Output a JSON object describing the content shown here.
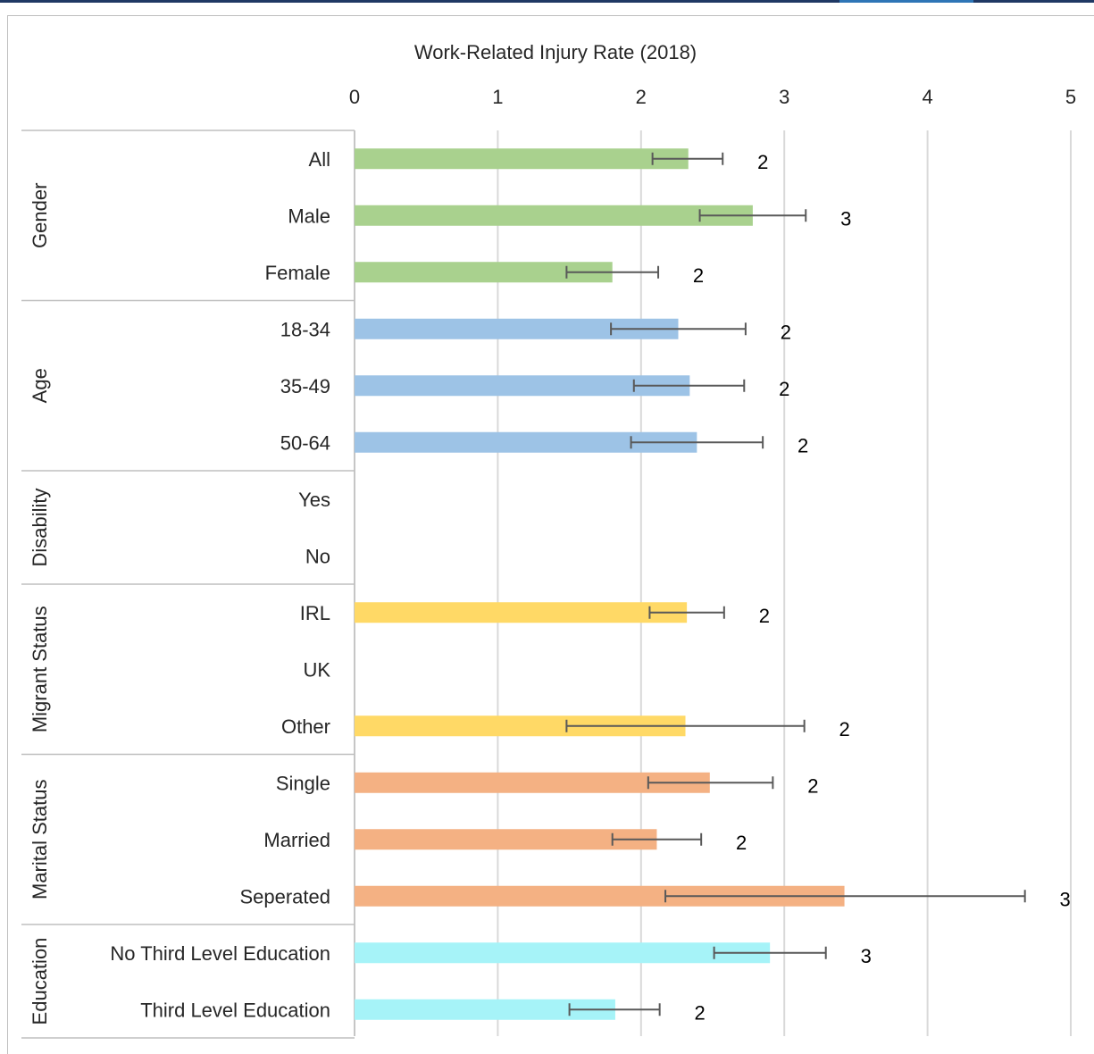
{
  "chart_data": {
    "type": "bar",
    "orientation": "horizontal",
    "title": "Work-Related Injury Rate (2018)",
    "xlim": [
      0,
      5
    ],
    "x_ticks": [
      "0",
      "1",
      "2",
      "3",
      "4",
      "5"
    ],
    "grid": true,
    "groups": [
      {
        "name": "Gender",
        "color": "#a9d18e",
        "rows": [
          {
            "category": "All",
            "value": 2.33,
            "err_low": 2.08,
            "err_high": 2.57,
            "label": "2"
          },
          {
            "category": "Male",
            "value": 2.78,
            "err_low": 2.41,
            "err_high": 3.15,
            "label": "3"
          },
          {
            "category": "Female",
            "value": 1.8,
            "err_low": 1.48,
            "err_high": 2.12,
            "label": "2"
          }
        ]
      },
      {
        "name": "Age",
        "color": "#9dc3e6",
        "rows": [
          {
            "category": "18-34",
            "value": 2.26,
            "err_low": 1.79,
            "err_high": 2.73,
            "label": "2"
          },
          {
            "category": "35-49",
            "value": 2.34,
            "err_low": 1.95,
            "err_high": 2.72,
            "label": "2"
          },
          {
            "category": "50-64",
            "value": 2.39,
            "err_low": 1.93,
            "err_high": 2.85,
            "label": "2"
          }
        ]
      },
      {
        "name": "Disability",
        "color": "#bdd7ee",
        "rows": [
          {
            "category": "Yes",
            "value": null,
            "label": ""
          },
          {
            "category": "No",
            "value": null,
            "label": ""
          }
        ]
      },
      {
        "name": "Migrant Status",
        "color": "#ffd966",
        "rows": [
          {
            "category": "IRL",
            "value": 2.32,
            "err_low": 2.06,
            "err_high": 2.58,
            "label": "2"
          },
          {
            "category": "UK",
            "value": null,
            "label": ""
          },
          {
            "category": "Other",
            "value": 2.31,
            "err_low": 1.48,
            "err_high": 3.14,
            "label": "2"
          }
        ]
      },
      {
        "name": "Marital Status",
        "color": "#f4b183",
        "rows": [
          {
            "category": "Single",
            "value": 2.48,
            "err_low": 2.05,
            "err_high": 2.92,
            "label": "2"
          },
          {
            "category": "Married",
            "value": 2.11,
            "err_low": 1.8,
            "err_high": 2.42,
            "label": "2"
          },
          {
            "category": "Seperated",
            "value": 3.42,
            "err_low": 2.17,
            "err_high": 4.68,
            "label": "3"
          }
        ]
      },
      {
        "name": "Education",
        "color": "#a6f3f8",
        "rows": [
          {
            "category": "No Third Level Education",
            "value": 2.9,
            "err_low": 2.51,
            "err_high": 3.29,
            "label": "3"
          },
          {
            "category": "Third Level Education",
            "value": 1.82,
            "err_low": 1.5,
            "err_high": 2.13,
            "label": "2"
          }
        ]
      }
    ]
  }
}
